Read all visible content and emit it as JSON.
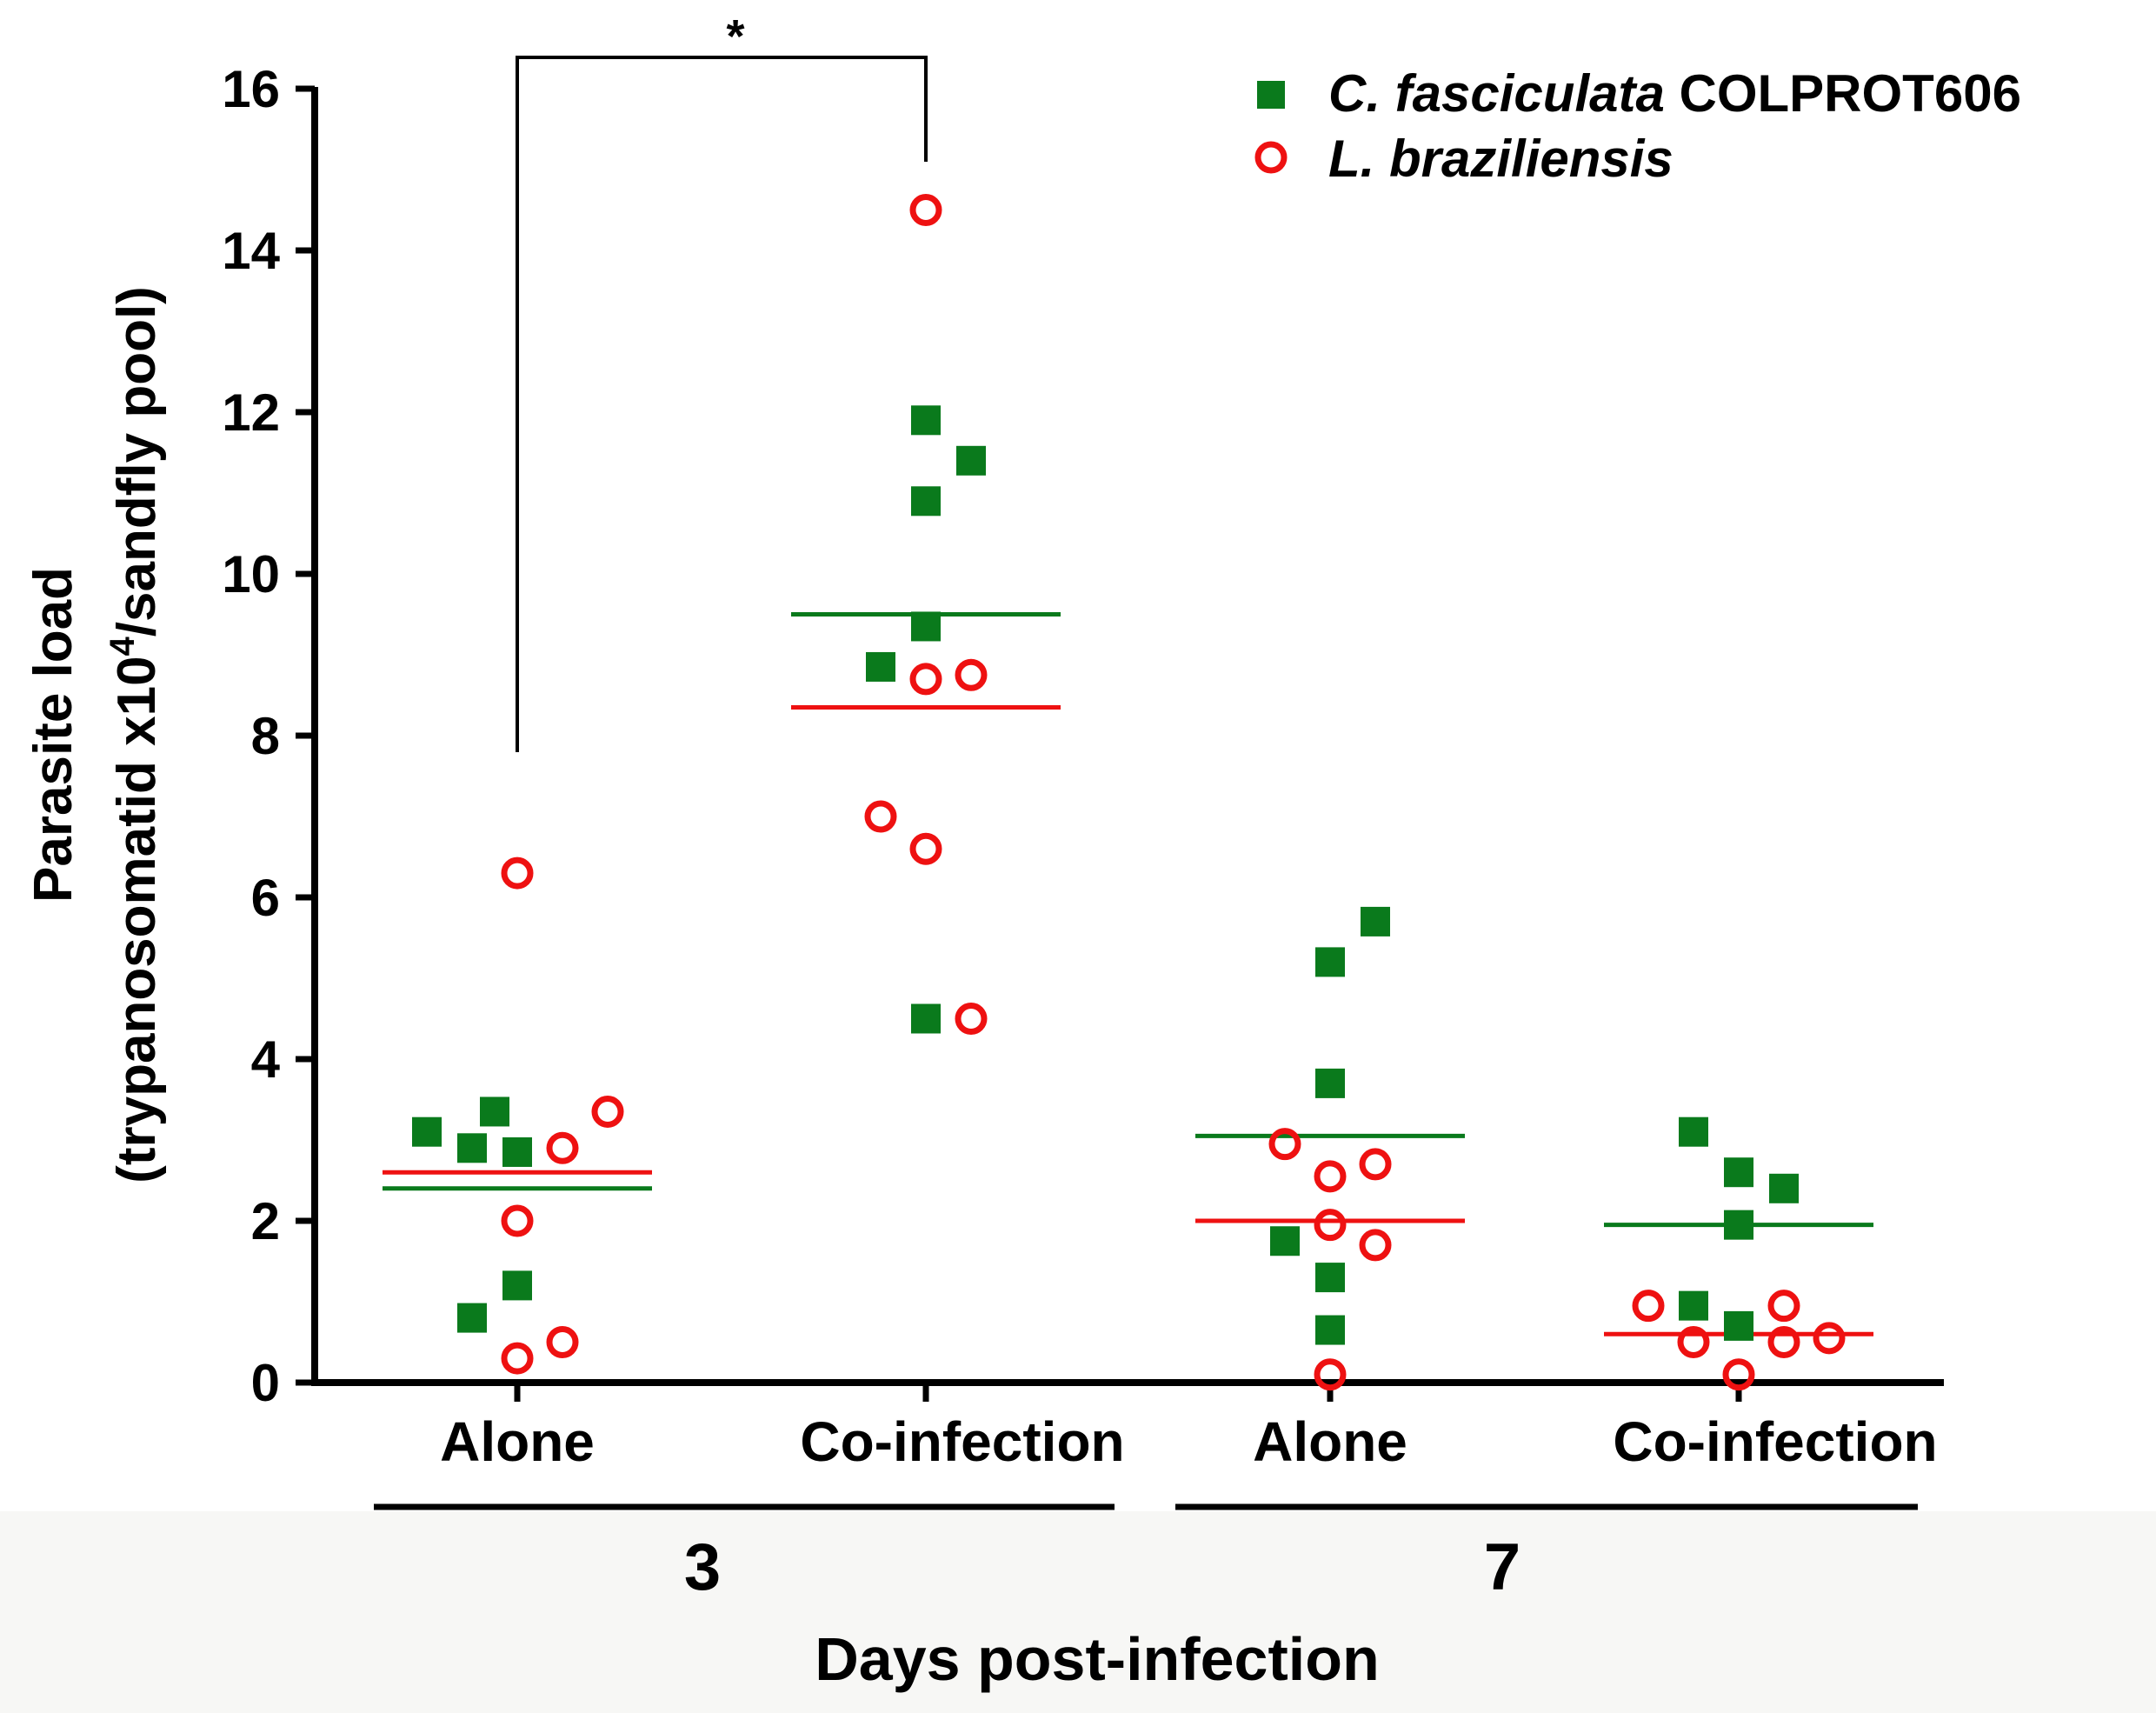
{
  "chart_data": {
    "type": "scatter",
    "ylabel_line1": "Parasite load",
    "ylabel_line2_prefix": "(trypanosomatid x10",
    "ylabel_superscript": "4",
    "ylabel_line2_suffix": "/sandfly pool)",
    "xlabel": "Days post-infection",
    "ylim": [
      0,
      16
    ],
    "yticks": [
      "0",
      "2",
      "4",
      "6",
      "8",
      "10",
      "12",
      "14",
      "16"
    ],
    "groups": [
      "Alone",
      "Co-infection",
      "Alone",
      "Co-infection"
    ],
    "days": [
      "3",
      "7"
    ],
    "significance": "*",
    "legend": [
      {
        "italic": "C. fasciculata",
        "plain": " COLPROT606",
        "marker": "square",
        "color": "#0a7a1c"
      },
      {
        "italic": "L. braziliensis",
        "plain": "",
        "marker": "circle",
        "color": "#ee1111"
      }
    ],
    "series": [
      {
        "name": "C. fasciculata COLPROT606",
        "marker": "square",
        "color": "#0a7a1c",
        "means": [
          2.4,
          9.5,
          3.05,
          1.95
        ],
        "points": [
          {
            "group": 0,
            "offset": -2,
            "y": 3.1
          },
          {
            "group": 0,
            "offset": -1,
            "y": 2.9
          },
          {
            "group": 0,
            "offset": -0.5,
            "y": 3.35
          },
          {
            "group": 0,
            "offset": 0,
            "y": 2.85
          },
          {
            "group": 0,
            "offset": -1,
            "y": 0.8
          },
          {
            "group": 0,
            "offset": 0,
            "y": 1.2
          },
          {
            "group": 1,
            "offset": 0,
            "y": 11.9
          },
          {
            "group": 1,
            "offset": 1,
            "y": 11.4
          },
          {
            "group": 1,
            "offset": 0,
            "y": 10.9
          },
          {
            "group": 1,
            "offset": 0,
            "y": 9.35
          },
          {
            "group": 1,
            "offset": -1,
            "y": 8.85
          },
          {
            "group": 1,
            "offset": 0,
            "y": 4.5
          },
          {
            "group": 2,
            "offset": 1,
            "y": 5.7
          },
          {
            "group": 2,
            "offset": 0,
            "y": 5.2
          },
          {
            "group": 2,
            "offset": 0,
            "y": 3.7
          },
          {
            "group": 2,
            "offset": -1,
            "y": 1.75
          },
          {
            "group": 2,
            "offset": 0,
            "y": 1.3
          },
          {
            "group": 2,
            "offset": 0,
            "y": 0.65
          },
          {
            "group": 3,
            "offset": -1,
            "y": 3.1
          },
          {
            "group": 3,
            "offset": 0,
            "y": 2.6
          },
          {
            "group": 3,
            "offset": 1,
            "y": 2.4
          },
          {
            "group": 3,
            "offset": 0,
            "y": 1.95
          },
          {
            "group": 3,
            "offset": -1,
            "y": 0.95
          },
          {
            "group": 3,
            "offset": 0,
            "y": 0.7
          }
        ]
      },
      {
        "name": "L. braziliensis",
        "marker": "circle",
        "color": "#ee1111",
        "means": [
          2.6,
          8.35,
          2.0,
          0.6
        ],
        "points": [
          {
            "group": 0,
            "offset": 0,
            "y": 6.3
          },
          {
            "group": 0,
            "offset": 2,
            "y": 3.35
          },
          {
            "group": 0,
            "offset": 1,
            "y": 2.9
          },
          {
            "group": 0,
            "offset": 0,
            "y": 2.0
          },
          {
            "group": 0,
            "offset": 1,
            "y": 0.5
          },
          {
            "group": 0,
            "offset": 0,
            "y": 0.3
          },
          {
            "group": 1,
            "offset": 0,
            "y": 14.5
          },
          {
            "group": 1,
            "offset": 0,
            "y": 8.7
          },
          {
            "group": 1,
            "offset": 1,
            "y": 8.75
          },
          {
            "group": 1,
            "offset": -1,
            "y": 7.0
          },
          {
            "group": 1,
            "offset": 0,
            "y": 6.6
          },
          {
            "group": 1,
            "offset": 1,
            "y": 4.5
          },
          {
            "group": 2,
            "offset": -1,
            "y": 2.95
          },
          {
            "group": 2,
            "offset": 1,
            "y": 2.7
          },
          {
            "group": 2,
            "offset": 0,
            "y": 2.55
          },
          {
            "group": 2,
            "offset": 0,
            "y": 1.95
          },
          {
            "group": 2,
            "offset": 1,
            "y": 1.7
          },
          {
            "group": 2,
            "offset": 0,
            "y": 0.1
          },
          {
            "group": 3,
            "offset": -2,
            "y": 0.95
          },
          {
            "group": 3,
            "offset": 1,
            "y": 0.95
          },
          {
            "group": 3,
            "offset": -1,
            "y": 0.5
          },
          {
            "group": 3,
            "offset": 1,
            "y": 0.5
          },
          {
            "group": 3,
            "offset": 2,
            "y": 0.55
          },
          {
            "group": 3,
            "offset": 0,
            "y": 0.1
          }
        ]
      }
    ]
  }
}
